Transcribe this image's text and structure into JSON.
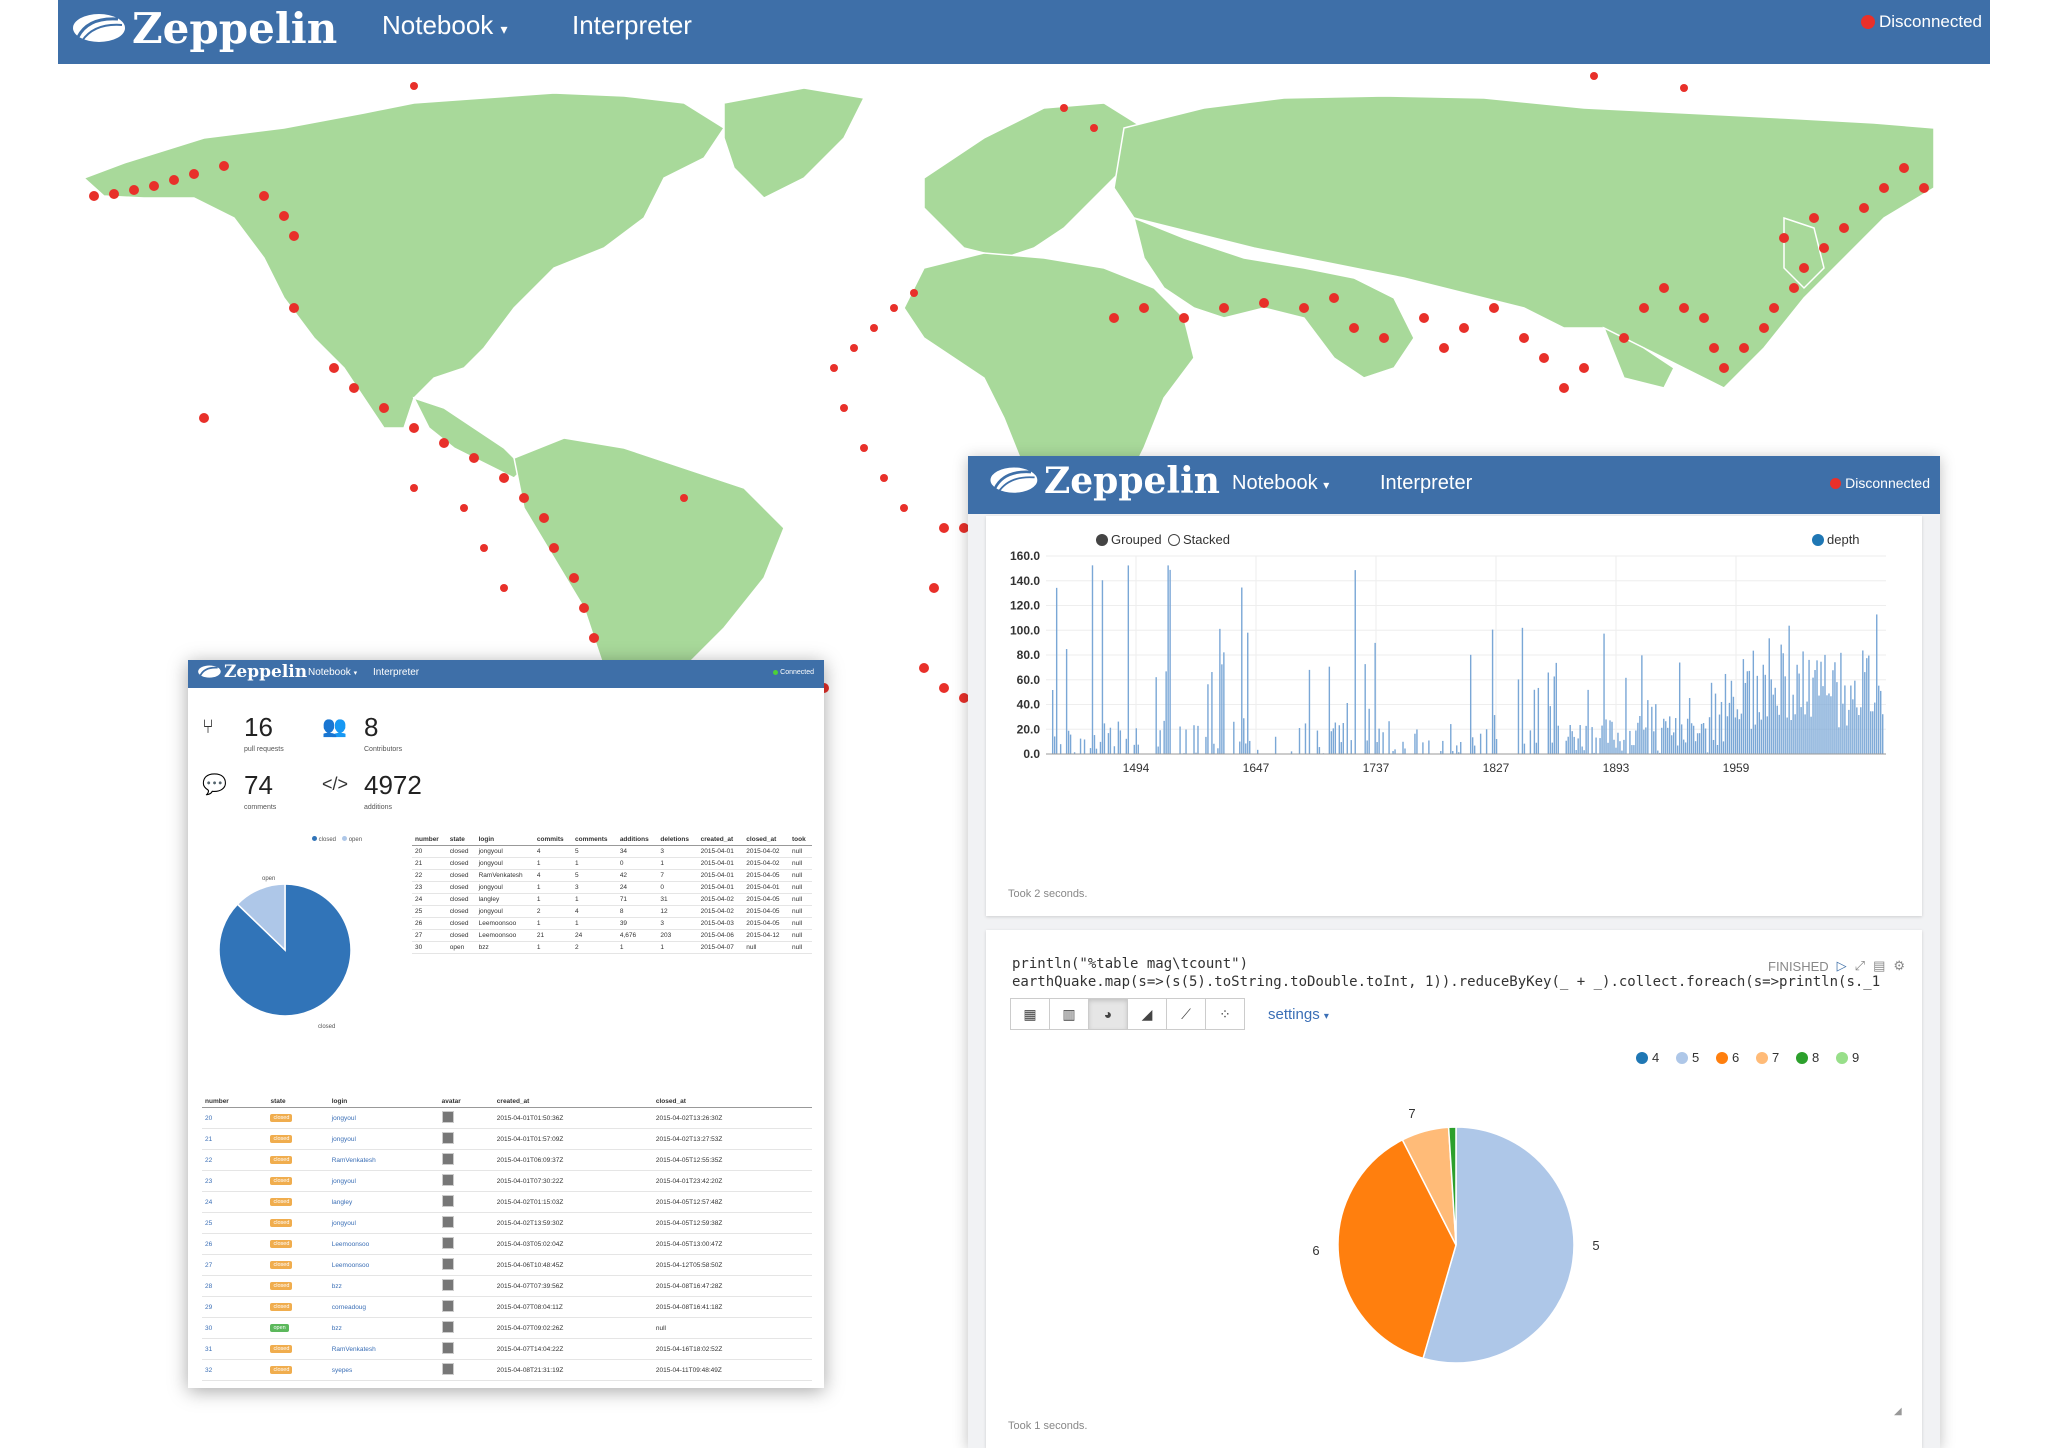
{
  "app": {
    "name": "Zeppelin",
    "nav": {
      "notebook": "Notebook",
      "interpreter": "Interpreter"
    },
    "status_disconnected": "Disconnected",
    "status_connected": "Connected",
    "brand_color": "#3e6fa8"
  },
  "colors": {
    "land": "#a8d99a",
    "quake": "#e8302a",
    "bar": "#7aa7d6",
    "pie_closed": "#3174b8",
    "pie_open": "#aec7e8"
  },
  "depth_chart": {
    "options": {
      "grouped": "Grouped",
      "stacked": "Stacked"
    },
    "chart_data": {
      "type": "bar",
      "ylim": [
        0,
        160
      ],
      "yticks": [
        "160.0",
        "140.0",
        "120.0",
        "100.0",
        "80.0",
        "60.0",
        "40.0",
        "20.0",
        "0.0"
      ],
      "xticks": [
        "1494",
        "1647",
        "1737",
        "1827",
        "1893",
        "1959"
      ],
      "series": [
        {
          "name": "depth"
        }
      ],
      "legend": "top-right"
    },
    "took": "Took 2 seconds."
  },
  "paragraph": {
    "code_line1": "println(\"%table mag\\tcount\")",
    "code_line2": "earthQuake.map(s=>(s(5).toString.toDouble.toInt, 1)).reduceByKey(_ + _).collect.foreach(s=>println(s._1",
    "status": "FINISHED",
    "settings": "settings",
    "took": "Took 1 seconds.",
    "chart_data": {
      "type": "pie",
      "legend": [
        "4",
        "5",
        "6",
        "7",
        "8",
        "9"
      ],
      "legend_colors": [
        "#1f77b4",
        "#aec7e8",
        "#ff7f0e",
        "#ffbb78",
        "#2ca02c",
        "#98df8a"
      ],
      "labels": {
        "five": "5",
        "six": "6",
        "seven": "7"
      },
      "slices": [
        {
          "label": "5",
          "value": 54.5,
          "color": "#aec7e8"
        },
        {
          "label": "6",
          "value": 38.0,
          "color": "#ff7f0e"
        },
        {
          "label": "7",
          "value": 6.5,
          "color": "#ffbb78"
        },
        {
          "label": "8",
          "value": 1.0,
          "color": "#2ca02c"
        }
      ]
    }
  },
  "github": {
    "stats": [
      {
        "num": "16",
        "label": "pull requests",
        "icon": "code-fork-icon"
      },
      {
        "num": "8",
        "label": "Contributors",
        "icon": "users-icon"
      },
      {
        "num": "74",
        "label": "comments",
        "icon": "comments-icon"
      },
      {
        "num": "4972",
        "label": "additions",
        "icon": "code-icon"
      }
    ],
    "pie": {
      "legend_closed": "closed",
      "legend_open": "open",
      "label_open": "open",
      "label_closed": "closed",
      "chart_data": {
        "type": "pie",
        "slices": [
          {
            "label": "closed",
            "value": 15
          },
          {
            "label": "open",
            "value": 1
          }
        ]
      }
    },
    "table1": {
      "headers": [
        "number",
        "state",
        "login",
        "commits",
        "comments",
        "additions",
        "deletions",
        "created_at",
        "closed_at",
        "took"
      ],
      "rows": [
        [
          "20",
          "closed",
          "jongyoul",
          "4",
          "5",
          "34",
          "3",
          "2015-04-01",
          "2015-04-02",
          "null"
        ],
        [
          "21",
          "closed",
          "jongyoul",
          "1",
          "1",
          "0",
          "1",
          "2015-04-01",
          "2015-04-02",
          "null"
        ],
        [
          "22",
          "closed",
          "RamVenkatesh",
          "4",
          "5",
          "42",
          "7",
          "2015-04-01",
          "2015-04-05",
          "null"
        ],
        [
          "23",
          "closed",
          "jongyoul",
          "1",
          "3",
          "24",
          "0",
          "2015-04-01",
          "2015-04-01",
          "null"
        ],
        [
          "24",
          "closed",
          "langley",
          "1",
          "1",
          "71",
          "31",
          "2015-04-02",
          "2015-04-05",
          "null"
        ],
        [
          "25",
          "closed",
          "jongyoul",
          "2",
          "4",
          "8",
          "12",
          "2015-04-02",
          "2015-04-05",
          "null"
        ],
        [
          "26",
          "closed",
          "Leemoonsoo",
          "1",
          "1",
          "39",
          "3",
          "2015-04-03",
          "2015-04-05",
          "null"
        ],
        [
          "27",
          "closed",
          "Leemoonsoo",
          "21",
          "24",
          "4,676",
          "203",
          "2015-04-06",
          "2015-04-12",
          "null"
        ],
        [
          "30",
          "open",
          "bzz",
          "1",
          "2",
          "1",
          "1",
          "2015-04-07",
          "null",
          "null"
        ]
      ]
    },
    "table2": {
      "headers": [
        "number",
        "state",
        "login",
        "avatar",
        "created_at",
        "closed_at"
      ],
      "rows": [
        [
          "20",
          "closed",
          "jongyoul",
          "2015-04-01T01:50:36Z",
          "2015-04-02T13:26:30Z"
        ],
        [
          "21",
          "closed",
          "jongyoul",
          "2015-04-01T01:57:09Z",
          "2015-04-02T13:27:53Z"
        ],
        [
          "22",
          "closed",
          "RamVenkatesh",
          "2015-04-01T06:09:37Z",
          "2015-04-05T12:55:35Z"
        ],
        [
          "23",
          "closed",
          "jongyoul",
          "2015-04-01T07:30:22Z",
          "2015-04-01T23:42:20Z"
        ],
        [
          "24",
          "closed",
          "langley",
          "2015-04-02T01:15:03Z",
          "2015-04-05T12:57:48Z"
        ],
        [
          "25",
          "closed",
          "jongyoul",
          "2015-04-02T13:59:30Z",
          "2015-04-05T12:59:38Z"
        ],
        [
          "26",
          "closed",
          "Leemoonsoo",
          "2015-04-03T05:02:04Z",
          "2015-04-05T13:00:47Z"
        ],
        [
          "27",
          "closed",
          "Leemoonsoo",
          "2015-04-06T10:48:45Z",
          "2015-04-12T05:58:50Z"
        ],
        [
          "28",
          "closed",
          "bzz",
          "2015-04-07T07:39:56Z",
          "2015-04-08T16:47:28Z"
        ],
        [
          "29",
          "closed",
          "corneadoug",
          "2015-04-07T08:04:11Z",
          "2015-04-08T16:41:18Z"
        ],
        [
          "30",
          "open",
          "bzz",
          "2015-04-07T09:02:26Z",
          "null"
        ],
        [
          "31",
          "closed",
          "RamVenkatesh",
          "2015-04-07T14:04:22Z",
          "2015-04-16T18:02:52Z"
        ],
        [
          "32",
          "closed",
          "syepes",
          "2015-04-08T21:31:19Z",
          "2015-04-11T09:48:49Z"
        ]
      ]
    }
  }
}
